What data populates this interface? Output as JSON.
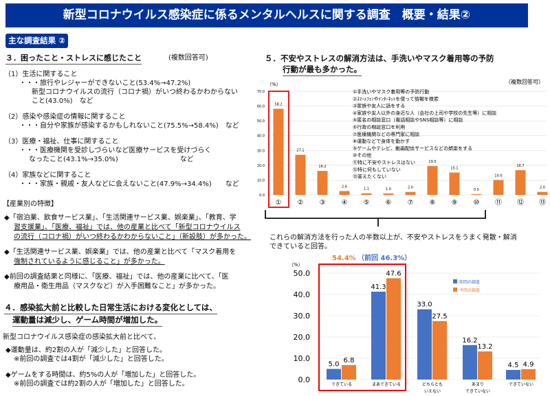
{
  "header": {
    "title": "新型コロナウイルス感染症に係るメンタルヘルスに関する調査　概要・結果②",
    "subtitle": "主な調査結果 ②"
  },
  "section3": {
    "heading": "３．困ったこと・ストレスに感じたこと",
    "note": "(複数回答可)",
    "items": [
      {
        "label": "（1）生活に関すること",
        "lines": [
          "・・・旅行やレジャーができないこと(53.4%→47.2%)",
          "新型コロナウイルスの流行（コロナ禍）がいつ終わるかわからない",
          "こと(43.0%)　など"
        ]
      },
      {
        "label": "（2）感染や感染症の情報に関すること",
        "lines": [
          "・・・自分や家族が感染するかもしれないこと(75.5%→58.4%)　など"
        ]
      },
      {
        "label": "（3）医療・福祉、仕事に関すること",
        "lines": [
          "・・・医療機関を受診しづらいなど医療サービスを受けづらく",
          "なったこと(43.1%→35.0%)　　　　　　　　　など"
        ]
      },
      {
        "label": "（4）家族などに関すること",
        "lines": [
          "・・・家族・親戚・友人などに会えないこと(47.9%→34.4%)　　など"
        ]
      }
    ]
  },
  "industry": {
    "heading": "【産業別の特徴】",
    "p1": [
      "◆「宿泊業、飲食サービス業」、「生活関連サービス業、娯楽業」、「教育、学",
      "習支援業」、「医療、福祉」では、他の産業と比べて「新型コロナウイルス",
      "の流行（コロナ禍）がいつ終わるかわからないこと」（新設肢）が多かった。"
    ],
    "p2": [
      "◆「生活関連サービス業、娯楽業」では、他の産業と比べて「マスク着用を",
      "強制されているように感じること」が多かった。"
    ],
    "p3": [
      "◆前回の調査結果と同様に、「医療、福祉」では、他の産業に比べて、「医",
      "療用品・衛生用品（マスクなど）が入手困難なこと」が多かった。"
    ]
  },
  "section4": {
    "heading1": "４．感染拡大前と比較した日常生活における変化としては、",
    "heading2": "運動量は減少し、ゲーム時間が増加した。",
    "intro": "新型コロナウイルス感染症の感染拡大前と比べて、",
    "b1": [
      "◆運動量は、約2割の人が「減少した」と回答した。",
      "※前回の調査では4割が「減少した」と回答した。"
    ],
    "b2": [
      "◆ゲームをする時間は、約5%の人が「増加した」と回答した。",
      "※前回の調査では約2割の人が「増加した」と回答した。"
    ]
  },
  "section5": {
    "heading1": "５．不安やストレスの解消方法は、手洗いやマスク着用等の予防",
    "heading2": "行動が最も多かった。",
    "summary": [
      "これらの解消方法を行った人の半数以上が、不安やストレスをうまく発散・解消",
      "できていると回答。"
    ]
  },
  "chart_data": [
    {
      "type": "bar",
      "unit": "（%）",
      "note": "（複数回答可）",
      "ylim": [
        0,
        70
      ],
      "yticks": [
        "0.0",
        "10.0",
        "20.0",
        "30.0",
        "40.0",
        "50.0",
        "60.0",
        "70.0"
      ],
      "categories": [
        "①",
        "②",
        "③",
        "④",
        "⑤",
        "⑥",
        "⑦",
        "⑧",
        "⑨",
        "⑩",
        "⑪",
        "⑫",
        "⑬"
      ],
      "values": [
        58.2,
        27.1,
        16.2,
        2.6,
        1.1,
        1.0,
        2.0,
        19.5,
        15.1,
        0.5,
        10.0,
        16.7,
        2.0
      ],
      "labels": [
        "58.2",
        "27.1",
        "16.2",
        "2.6",
        "1.1",
        "1.0",
        "2.0",
        "19.5",
        "15.1",
        "0.5",
        "10.0",
        "16.7",
        "2.0"
      ],
      "legend": [
        "①手洗いやマスク着用等の予防行動",
        "②ｽﾏｰﾄﾌｫﾝやｲﾝﾀｰﾈｯﾄを使って情報を検索",
        "③家族や友人に話をする",
        "④家族や友人以外の身近な人（会社の上司や学校の先生等）に相談",
        "⑤匿名の相談窓口（電話相談やSNS相談等）に相談",
        "⑥行政の相談窓口を利用",
        "⑦医療機関などの専門家に相談",
        "⑧運動などで身体を動かす",
        "⑨ゲームやテレビ、動画配信サービスなどの娯楽をする",
        "⑩その他",
        "⑪特に不安やストレスはない",
        "⑫特に何もしていない",
        "⑬答えたくない"
      ],
      "color": "#ed7d31"
    },
    {
      "type": "bar",
      "unit": "（%）",
      "ylim": [
        0,
        50
      ],
      "yticks": [
        "0.0",
        "10.0",
        "20.0",
        "30.0",
        "40.0",
        "50.0"
      ],
      "annotation_now": "54.4%",
      "annotation_prev": "（前回 46.3%）",
      "categories": [
        [
          "できている"
        ],
        [
          "まあできている"
        ],
        [
          "どちらとも",
          "いえない"
        ],
        [
          "あまり",
          "できていない"
        ],
        [
          "できていない"
        ]
      ],
      "series": [
        {
          "name": "前回の調査",
          "color": "#4472c4",
          "values": [
            5.0,
            41.3,
            33.0,
            16.2,
            4.5
          ],
          "labels": [
            "5.0",
            "41.3",
            "33.0",
            "16.2",
            "4.5"
          ]
        },
        {
          "name": "今回の調査",
          "color": "#ed7d31",
          "values": [
            6.8,
            47.6,
            27.5,
            13.2,
            4.9
          ],
          "labels": [
            "6.8",
            "47.6",
            "27.5",
            "13.2",
            "4.9"
          ]
        }
      ]
    }
  ]
}
